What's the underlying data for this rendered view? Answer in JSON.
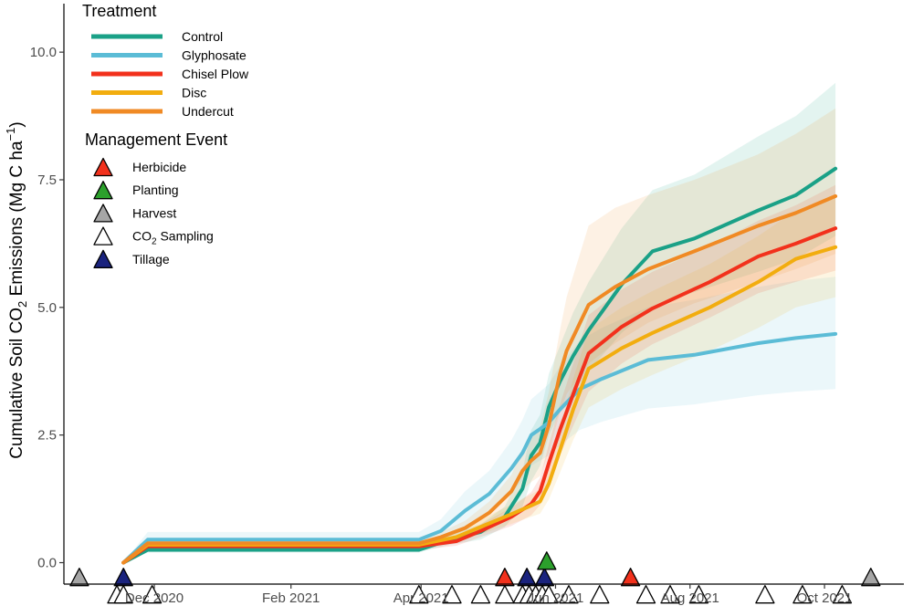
{
  "chart_data": {
    "type": "line",
    "ylabel_parts": [
      "Cumulative Soil CO",
      "2",
      " Emissions (Mg C ha",
      "−1",
      ")"
    ],
    "xlim": [
      "2020-10-21",
      "2021-11-06"
    ],
    "ylim": [
      -0.42,
      10.95
    ],
    "x_ticks": [
      {
        "date": "2020-12-01",
        "label": "Dec 2020"
      },
      {
        "date": "2021-02-01",
        "label": "Feb 2021"
      },
      {
        "date": "2021-04-01",
        "label": "Apr 2021"
      },
      {
        "date": "2021-06-01",
        "label": "Jun 2021"
      },
      {
        "date": "2021-08-01",
        "label": "Aug 2021"
      },
      {
        "date": "2021-10-01",
        "label": "Oct 2021"
      }
    ],
    "y_ticks": [
      {
        "value": 0,
        "label": "0.0"
      },
      {
        "value": 2.5,
        "label": "2.5"
      },
      {
        "value": 5,
        "label": "5.0"
      },
      {
        "value": 7.5,
        "label": "7.5"
      },
      {
        "value": 10,
        "label": "10.0"
      }
    ],
    "grid": false,
    "legend_position": "top-left",
    "treatment_legend_title": "Treatment",
    "event_legend_title": "Management Event",
    "series": [
      {
        "name": "Control",
        "color": "#1aa187",
        "dates": [
          "2020-11-17",
          "2020-11-28",
          "2021-03-31",
          "2021-04-14",
          "2021-04-28",
          "2021-05-09",
          "2021-05-17",
          "2021-05-21",
          "2021-05-25",
          "2021-05-29",
          "2021-06-03",
          "2021-06-09",
          "2021-06-16",
          "2021-07-01",
          "2021-07-15",
          "2021-08-03",
          "2021-09-01",
          "2021-09-18",
          "2021-10-06"
        ],
        "values": [
          0,
          0.25,
          0.25,
          0.45,
          0.6,
          0.9,
          1.45,
          2.1,
          2.35,
          3.05,
          3.55,
          4.05,
          4.55,
          5.45,
          6.1,
          6.35,
          6.9,
          7.2,
          7.72
        ],
        "band_lower": [
          0,
          0.2,
          0.2,
          0.35,
          0.45,
          0.7,
          1.1,
          1.6,
          1.9,
          2.5,
          2.95,
          3.35,
          3.75,
          4.5,
          5.0,
          5.3,
          5.7,
          5.95,
          6.4
        ],
        "band_upper": [
          0,
          0.32,
          0.32,
          0.55,
          0.75,
          1.1,
          1.8,
          2.6,
          2.9,
          3.7,
          4.25,
          4.9,
          5.5,
          6.55,
          7.3,
          7.6,
          8.35,
          8.75,
          9.4
        ]
      },
      {
        "name": "Glyphosate",
        "color": "#5bbcd6",
        "dates": [
          "2020-11-17",
          "2020-11-28",
          "2021-03-31",
          "2021-04-10",
          "2021-04-21",
          "2021-05-02",
          "2021-05-12",
          "2021-05-17",
          "2021-05-21",
          "2021-05-25",
          "2021-05-29",
          "2021-06-03",
          "2021-06-12",
          "2021-06-22",
          "2021-07-13",
          "2021-08-03",
          "2021-09-01",
          "2021-09-18",
          "2021-10-06"
        ],
        "values": [
          0,
          0.45,
          0.45,
          0.62,
          1.02,
          1.35,
          1.85,
          2.15,
          2.5,
          2.62,
          2.75,
          3.0,
          3.4,
          3.6,
          3.97,
          4.07,
          4.3,
          4.4,
          4.48
        ],
        "band_lower": [
          0,
          0.3,
          0.3,
          0.42,
          0.72,
          0.98,
          1.38,
          1.6,
          1.9,
          2.0,
          2.1,
          2.3,
          2.6,
          2.76,
          3.02,
          3.1,
          3.28,
          3.35,
          3.4
        ],
        "band_upper": [
          0,
          0.6,
          0.6,
          0.85,
          1.4,
          1.8,
          2.4,
          2.8,
          3.2,
          3.35,
          3.5,
          3.85,
          4.35,
          4.6,
          5.0,
          5.15,
          5.4,
          5.52,
          5.6
        ]
      },
      {
        "name": "Chisel Plow",
        "color": "#f2311c",
        "dates": [
          "2020-11-17",
          "2020-11-28",
          "2021-03-31",
          "2021-04-17",
          "2021-04-28",
          "2021-05-12",
          "2021-05-21",
          "2021-05-25",
          "2021-05-29",
          "2021-06-03",
          "2021-06-09",
          "2021-06-16",
          "2021-07-01",
          "2021-07-15",
          "2021-08-10",
          "2021-09-01",
          "2021-09-18",
          "2021-10-06"
        ],
        "values": [
          0,
          0.32,
          0.32,
          0.42,
          0.62,
          0.9,
          1.15,
          1.4,
          1.95,
          2.6,
          3.3,
          4.1,
          4.62,
          4.98,
          5.5,
          6.0,
          6.25,
          6.55
        ],
        "band_lower": [
          0,
          0.25,
          0.25,
          0.33,
          0.5,
          0.72,
          0.93,
          1.13,
          1.58,
          2.1,
          2.68,
          3.35,
          3.9,
          4.28,
          4.8,
          5.28,
          5.5,
          5.72
        ],
        "band_upper": [
          0,
          0.4,
          0.4,
          0.52,
          0.75,
          1.08,
          1.38,
          1.67,
          2.32,
          3.1,
          3.9,
          4.85,
          5.35,
          5.7,
          6.2,
          6.7,
          7.0,
          7.4
        ]
      },
      {
        "name": "Disc",
        "color": "#f2ad0f",
        "dates": [
          "2020-11-17",
          "2020-11-28",
          "2021-03-31",
          "2021-04-17",
          "2021-04-28",
          "2021-05-12",
          "2021-05-21",
          "2021-05-25",
          "2021-05-29",
          "2021-06-03",
          "2021-06-09",
          "2021-06-16",
          "2021-07-01",
          "2021-07-15",
          "2021-08-10",
          "2021-09-01",
          "2021-09-18",
          "2021-10-06"
        ],
        "values": [
          0,
          0.35,
          0.35,
          0.5,
          0.7,
          0.95,
          1.12,
          1.2,
          1.55,
          2.2,
          3.0,
          3.8,
          4.2,
          4.5,
          5.0,
          5.5,
          5.95,
          6.18
        ],
        "band_lower": [
          0,
          0.28,
          0.28,
          0.4,
          0.56,
          0.76,
          0.9,
          0.96,
          1.24,
          1.76,
          2.4,
          3.04,
          3.4,
          3.68,
          4.15,
          4.6,
          5.0,
          5.2
        ],
        "band_upper": [
          0,
          0.42,
          0.42,
          0.6,
          0.84,
          1.14,
          1.34,
          1.44,
          1.86,
          2.64,
          3.6,
          4.56,
          5.0,
          5.32,
          5.85,
          6.4,
          6.9,
          7.16
        ]
      },
      {
        "name": "Undercut",
        "color": "#f08a24",
        "dates": [
          "2020-11-17",
          "2020-11-28",
          "2021-03-31",
          "2021-04-10",
          "2021-04-21",
          "2021-05-02",
          "2021-05-12",
          "2021-05-17",
          "2021-05-21",
          "2021-05-25",
          "2021-05-29",
          "2021-06-03",
          "2021-06-06",
          "2021-06-16",
          "2021-06-28",
          "2021-07-13",
          "2021-08-03",
          "2021-09-01",
          "2021-09-18",
          "2021-10-06"
        ],
        "values": [
          0,
          0.38,
          0.38,
          0.5,
          0.68,
          0.98,
          1.4,
          1.8,
          2.0,
          2.15,
          2.7,
          3.7,
          4.15,
          5.05,
          5.4,
          5.75,
          6.1,
          6.6,
          6.85,
          7.18
        ],
        "band_lower": [
          0,
          0.3,
          0.3,
          0.4,
          0.54,
          0.78,
          1.1,
          1.42,
          1.58,
          1.7,
          2.15,
          2.95,
          3.3,
          3.9,
          4.3,
          4.7,
          5.08,
          5.5,
          5.75,
          6.05
        ],
        "band_upper": [
          0,
          0.46,
          0.46,
          0.6,
          0.82,
          1.2,
          1.72,
          2.22,
          2.45,
          2.65,
          3.35,
          4.55,
          5.2,
          6.6,
          6.95,
          7.2,
          7.5,
          8.0,
          8.4,
          8.9
        ]
      }
    ],
    "events": [
      {
        "type": "Harvest",
        "color": "#a6a6a6",
        "dates": [
          "2020-10-28",
          "2021-10-22"
        ],
        "y": -0.28
      },
      {
        "type": "Tillage",
        "color": "#1a237e",
        "dates": [
          "2020-11-17",
          "2021-05-19",
          "2021-05-27"
        ],
        "y": -0.28
      },
      {
        "type": "Herbicide",
        "color": "#f2311c",
        "dates": [
          "2021-05-09",
          "2021-07-05"
        ],
        "y": -0.28
      },
      {
        "type": "Planting",
        "color": "#2ca02c",
        "dates": [
          "2021-05-28"
        ],
        "y": 0.04
      },
      {
        "type": "CO2 Sampling",
        "color": "#ffffff",
        "dates": [
          "2020-11-14",
          "2020-11-17",
          "2020-11-30",
          "2021-03-31",
          "2021-04-15",
          "2021-04-28",
          "2021-05-09",
          "2021-05-17",
          "2021-05-20",
          "2021-05-23",
          "2021-05-26",
          "2021-05-29",
          "2021-06-07",
          "2021-06-21",
          "2021-07-12",
          "2021-07-23",
          "2021-08-05",
          "2021-09-04",
          "2021-09-21",
          "2021-10-09"
        ],
        "y": -0.62
      }
    ],
    "treatment_legend": [
      {
        "label": "Control",
        "color": "#1aa187"
      },
      {
        "label": "Glyphosate",
        "color": "#5bbcd6"
      },
      {
        "label": "Chisel Plow",
        "color": "#f2311c"
      },
      {
        "label": "Disc",
        "color": "#f2ad0f"
      },
      {
        "label": "Undercut",
        "color": "#f08a24"
      }
    ],
    "event_legend": [
      {
        "label": "Herbicide",
        "color": "#f2311c"
      },
      {
        "label": "Planting",
        "color": "#2ca02c"
      },
      {
        "label": "Harvest",
        "color": "#a6a6a6"
      },
      {
        "label_parts": [
          "CO",
          "2",
          " Sampling"
        ],
        "color": "#ffffff"
      },
      {
        "label": "Tillage",
        "color": "#1a237e"
      }
    ]
  }
}
